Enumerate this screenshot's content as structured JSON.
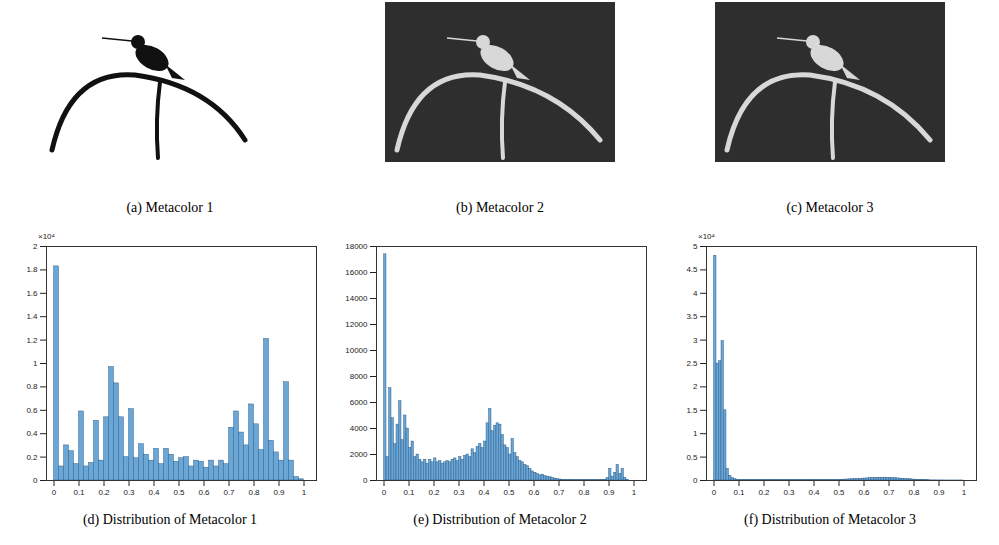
{
  "images": [
    {
      "caption": "(a) Metacolor 1"
    },
    {
      "caption": "(b) Metacolor 2"
    },
    {
      "caption": "(c) Metacolor 3"
    }
  ],
  "chart_data": [
    {
      "type": "histogram",
      "title": "(d) Distribution of Metacolor 1",
      "annotation": "×10⁴",
      "color": "#6aa6d6",
      "grid": false,
      "xlim": [
        -0.03,
        1.05
      ],
      "xticks": [
        0,
        0.1,
        0.2,
        0.3,
        0.4,
        0.5,
        0.6,
        0.7,
        0.8,
        0.9,
        1
      ],
      "ylim": [
        0,
        2
      ],
      "yticks": [
        0,
        0.2,
        0.4,
        0.6,
        0.8,
        1,
        1.2,
        1.4,
        1.6,
        1.8,
        2
      ],
      "bins": [
        0,
        0.02,
        0.04,
        0.06,
        0.08,
        0.1,
        0.12,
        0.14,
        0.16,
        0.18,
        0.2,
        0.22,
        0.24,
        0.26,
        0.28,
        0.3,
        0.32,
        0.34,
        0.36,
        0.38,
        0.4,
        0.42,
        0.44,
        0.46,
        0.48,
        0.5,
        0.52,
        0.54,
        0.56,
        0.58,
        0.6,
        0.62,
        0.64,
        0.66,
        0.68,
        0.7,
        0.72,
        0.74,
        0.76,
        0.78,
        0.8,
        0.82,
        0.84,
        0.86,
        0.88,
        0.9,
        0.92,
        0.94,
        0.96,
        0.98,
        1
      ],
      "values": [
        1.83,
        0.12,
        0.3,
        0.25,
        0.14,
        0.59,
        0.12,
        0.15,
        0.51,
        0.17,
        0.54,
        0.97,
        0.83,
        0.54,
        0.2,
        0.61,
        0.19,
        0.31,
        0.22,
        0.17,
        0.27,
        0.14,
        0.27,
        0.22,
        0.16,
        0.19,
        0.2,
        0.12,
        0.17,
        0.16,
        0.11,
        0.17,
        0.12,
        0.17,
        0.14,
        0.45,
        0.59,
        0.41,
        0.3,
        0.65,
        0.48,
        0.26,
        1.21,
        0.34,
        0.24,
        0.17,
        0.84,
        0.17,
        0.03,
        0.01
      ]
    },
    {
      "type": "histogram",
      "title": "(e) Distribution of Metacolor 2",
      "color": "#6aa6d6",
      "grid": false,
      "xlim": [
        -0.03,
        1.05
      ],
      "xticks": [
        0,
        0.1,
        0.2,
        0.3,
        0.4,
        0.5,
        0.6,
        0.7,
        0.8,
        0.9,
        1
      ],
      "ylim": [
        0,
        18000
      ],
      "yticks": [
        0,
        2000,
        4000,
        6000,
        8000,
        10000,
        12000,
        14000,
        16000,
        18000
      ],
      "bins": [
        0,
        0.01,
        0.02,
        0.03,
        0.04,
        0.05,
        0.06,
        0.07,
        0.08,
        0.09,
        0.1,
        0.11,
        0.12,
        0.13,
        0.14,
        0.15,
        0.16,
        0.17,
        0.18,
        0.19,
        0.2,
        0.21,
        0.22,
        0.23,
        0.24,
        0.25,
        0.26,
        0.27,
        0.28,
        0.29,
        0.3,
        0.31,
        0.32,
        0.33,
        0.34,
        0.35,
        0.36,
        0.37,
        0.38,
        0.39,
        0.4,
        0.41,
        0.42,
        0.43,
        0.44,
        0.45,
        0.46,
        0.47,
        0.48,
        0.49,
        0.5,
        0.51,
        0.52,
        0.53,
        0.54,
        0.55,
        0.56,
        0.57,
        0.58,
        0.59,
        0.6,
        0.61,
        0.62,
        0.63,
        0.64,
        0.65,
        0.66,
        0.67,
        0.68,
        0.69,
        0.7,
        0.71,
        0.72,
        0.73,
        0.74,
        0.75,
        0.76,
        0.77,
        0.78,
        0.79,
        0.8,
        0.81,
        0.82,
        0.83,
        0.84,
        0.85,
        0.86,
        0.87,
        0.88,
        0.89,
        0.9,
        0.91,
        0.92,
        0.93,
        0.94,
        0.95,
        0.96,
        0.97,
        0.98,
        0.99,
        1
      ],
      "values": [
        17400,
        1800,
        7100,
        4800,
        2800,
        4300,
        6100,
        3100,
        5000,
        4000,
        2500,
        3000,
        1800,
        2000,
        1600,
        1400,
        1600,
        1300,
        1600,
        1400,
        1700,
        1400,
        1500,
        1300,
        1400,
        1500,
        1400,
        1600,
        1700,
        1500,
        1800,
        1600,
        1900,
        2000,
        1800,
        2400,
        2100,
        2600,
        2800,
        2500,
        3000,
        4400,
        5500,
        3800,
        4200,
        4400,
        4300,
        3500,
        2700,
        2500,
        2000,
        3200,
        2100,
        1800,
        1500,
        1400,
        1200,
        1100,
        900,
        700,
        600,
        500,
        400,
        450,
        350,
        300,
        250,
        200,
        150,
        100,
        80,
        60,
        50,
        50,
        40,
        40,
        30,
        30,
        30,
        30,
        30,
        30,
        30,
        30,
        30,
        30,
        30,
        40,
        60,
        200,
        900,
        300,
        600,
        1200,
        500,
        900,
        200,
        50,
        0,
        0
      ]
    },
    {
      "type": "histogram",
      "title": "(f) Distribution of Metacolor 3",
      "annotation": "×10⁴",
      "color": "#6aa6d6",
      "grid": false,
      "xlim": [
        -0.03,
        1.05
      ],
      "xticks": [
        0,
        0.1,
        0.2,
        0.3,
        0.4,
        0.5,
        0.6,
        0.7,
        0.8,
        0.9,
        1
      ],
      "ylim": [
        0,
        5
      ],
      "yticks": [
        0,
        0.5,
        1,
        1.5,
        2,
        2.5,
        3,
        3.5,
        4,
        4.5,
        5
      ],
      "bins": [
        0,
        0.01,
        0.02,
        0.03,
        0.04,
        0.05,
        0.06,
        0.07,
        0.08,
        0.09,
        0.1,
        0.11,
        0.12,
        0.13,
        0.14,
        0.15,
        0.16,
        0.17,
        0.18,
        0.19,
        0.2,
        0.21,
        0.22,
        0.23,
        0.24,
        0.25,
        0.26,
        0.27,
        0.28,
        0.29,
        0.3,
        0.31,
        0.32,
        0.33,
        0.34,
        0.35,
        0.36,
        0.37,
        0.38,
        0.39,
        0.4,
        0.41,
        0.42,
        0.43,
        0.44,
        0.45,
        0.46,
        0.47,
        0.48,
        0.49,
        0.5,
        0.51,
        0.52,
        0.53,
        0.54,
        0.55,
        0.56,
        0.57,
        0.58,
        0.59,
        0.6,
        0.61,
        0.62,
        0.63,
        0.64,
        0.65,
        0.66,
        0.67,
        0.68,
        0.69,
        0.7,
        0.71,
        0.72,
        0.73,
        0.74,
        0.75,
        0.76,
        0.77,
        0.78,
        0.79,
        0.8,
        0.81,
        0.82,
        0.83,
        0.84,
        0.85,
        0.86,
        0.87,
        0.88,
        0.89,
        0.9,
        0.91,
        0.92,
        0.93,
        0.94,
        0.95,
        0.96,
        0.97,
        0.98,
        0.99,
        1
      ],
      "values": [
        4.8,
        2.5,
        2.55,
        2.98,
        1.5,
        0.25,
        0.1,
        0.05,
        0.03,
        0.01,
        0.01,
        0.01,
        0.01,
        0.01,
        0.01,
        0.01,
        0.01,
        0.01,
        0.01,
        0.01,
        0.01,
        0.01,
        0.01,
        0.01,
        0.01,
        0.01,
        0.01,
        0.01,
        0.01,
        0.01,
        0.01,
        0.01,
        0.01,
        0.01,
        0.01,
        0.01,
        0.01,
        0.01,
        0.01,
        0.01,
        0.01,
        0.01,
        0.01,
        0.01,
        0.01,
        0.01,
        0.01,
        0.01,
        0.01,
        0.01,
        0.015,
        0.017,
        0.02,
        0.022,
        0.025,
        0.028,
        0.03,
        0.033,
        0.036,
        0.04,
        0.043,
        0.046,
        0.05,
        0.053,
        0.056,
        0.058,
        0.06,
        0.06,
        0.06,
        0.058,
        0.056,
        0.053,
        0.05,
        0.046,
        0.042,
        0.038,
        0.034,
        0.03,
        0.026,
        0.022,
        0.018,
        0.015,
        0.012,
        0.01,
        0.008,
        0.006,
        0.004,
        0.003,
        0.003,
        0.002,
        0.002,
        0.002,
        0.001,
        0.001,
        0.001,
        0.001,
        0.001,
        0.001,
        0.001,
        0.001
      ]
    }
  ]
}
